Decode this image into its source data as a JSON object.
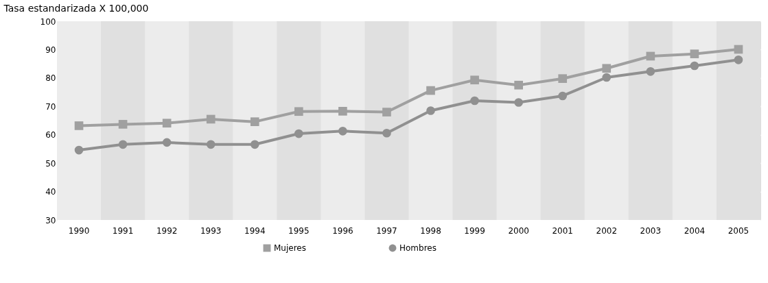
{
  "chart_data": {
    "type": "line",
    "ylabel": "Tasa estandarizada X 100,000",
    "categories": [
      "1990",
      "1991",
      "1992",
      "1993",
      "1994",
      "1995",
      "1996",
      "1997",
      "1998",
      "1999",
      "2000",
      "2001",
      "2002",
      "2003",
      "2004",
      "2005"
    ],
    "series": [
      {
        "name": "Mujeres",
        "color": "#a0a0a0",
        "marker": "square",
        "values": [
          63.2,
          63.7,
          64.1,
          65.5,
          64.6,
          68.2,
          68.3,
          68.0,
          75.6,
          79.3,
          77.5,
          79.8,
          83.4,
          87.7,
          88.5,
          90.1
        ]
      },
      {
        "name": "Hombres",
        "color": "#909090",
        "marker": "circle",
        "values": [
          54.6,
          56.6,
          57.3,
          56.6,
          56.6,
          60.4,
          61.3,
          60.6,
          68.5,
          72.0,
          71.4,
          73.7,
          80.2,
          82.3,
          84.3,
          86.4
        ]
      }
    ],
    "bands": [
      {
        "axis": "x",
        "from": "1991",
        "to": "1991",
        "color": "#e0e0e0"
      },
      {
        "axis": "x",
        "from": "1993",
        "to": "1993",
        "color": "#e0e0e0"
      },
      {
        "axis": "x",
        "from": "1995",
        "to": "1995",
        "color": "#e0e0e0"
      },
      {
        "axis": "x",
        "from": "1997",
        "to": "1997",
        "color": "#e0e0e0"
      },
      {
        "axis": "x",
        "from": "1999",
        "to": "1999",
        "color": "#e0e0e0"
      },
      {
        "axis": "x",
        "from": "2001",
        "to": "2001",
        "color": "#e0e0e0"
      },
      {
        "axis": "x",
        "from": "2003",
        "to": "2003",
        "color": "#e0e0e0"
      },
      {
        "axis": "x",
        "from": "2005",
        "to": "2005",
        "color": "#e0e0e0"
      }
    ],
    "ylim": [
      30,
      100
    ],
    "yticks": [
      30,
      40,
      50,
      60,
      70,
      80,
      90,
      100
    ],
    "grid": "y",
    "legend": "bottom",
    "line_style": "solid"
  }
}
